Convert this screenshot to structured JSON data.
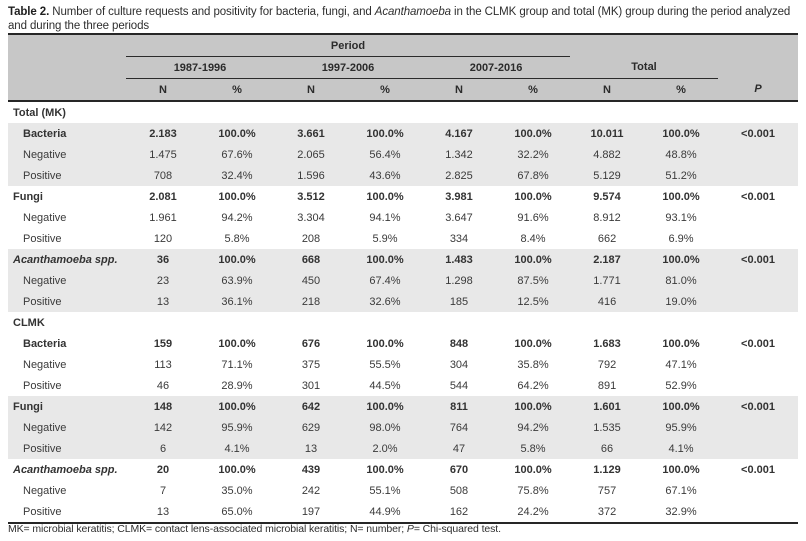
{
  "title": {
    "label": "Table 2.",
    "segment1": " Number of culture requests and positivity for bacteria, fungi, and ",
    "italic_term": "Acanthamoeba",
    "segment2": " in the CLMK group and total (MK) group during the period analyzed and during the three periods"
  },
  "header": {
    "period_label": "Period",
    "periods": [
      "1987-1996",
      "1997-2006",
      "2007-2016"
    ],
    "total_label": "Total",
    "n_label": "N",
    "percent_label": "%",
    "p_label": "P"
  },
  "rows": [
    {
      "label": "Total (MK)",
      "indent": false,
      "bold": true,
      "italic": false,
      "shaded": false,
      "values": [
        "",
        "",
        "",
        "",
        "",
        "",
        "",
        ""
      ],
      "p": ""
    },
    {
      "label": "Bacteria",
      "indent": true,
      "bold": true,
      "italic": false,
      "shaded": true,
      "values": [
        "2.183",
        "100.0%",
        "3.661",
        "100.0%",
        "4.167",
        "100.0%",
        "10.011",
        "100.0%"
      ],
      "p": "<0.001"
    },
    {
      "label": "Negative",
      "indent": true,
      "bold": false,
      "italic": false,
      "shaded": true,
      "values": [
        "1.475",
        "67.6%",
        "2.065",
        "56.4%",
        "1.342",
        "32.2%",
        "4.882",
        "48.8%"
      ],
      "p": ""
    },
    {
      "label": "Positive",
      "indent": true,
      "bold": false,
      "italic": false,
      "shaded": true,
      "values": [
        "708",
        "32.4%",
        "1.596",
        "43.6%",
        "2.825",
        "67.8%",
        "5.129",
        "51.2%"
      ],
      "p": ""
    },
    {
      "label": "Fungi",
      "indent": false,
      "bold": true,
      "italic": false,
      "shaded": false,
      "values": [
        "2.081",
        "100.0%",
        "3.512",
        "100.0%",
        "3.981",
        "100.0%",
        "9.574",
        "100.0%"
      ],
      "p": "<0.001"
    },
    {
      "label": "Negative",
      "indent": true,
      "bold": false,
      "italic": false,
      "shaded": false,
      "values": [
        "1.961",
        "94.2%",
        "3.304",
        "94.1%",
        "3.647",
        "91.6%",
        "8.912",
        "93.1%"
      ],
      "p": ""
    },
    {
      "label": "Positive",
      "indent": true,
      "bold": false,
      "italic": false,
      "shaded": false,
      "values": [
        "120",
        "5.8%",
        "208",
        "5.9%",
        "334",
        "8.4%",
        "662",
        "6.9%"
      ],
      "p": ""
    },
    {
      "label": "Acanthamoeba spp.",
      "indent": false,
      "bold": true,
      "italic": true,
      "shaded": true,
      "values": [
        "36",
        "100.0%",
        "668",
        "100.0%",
        "1.483",
        "100.0%",
        "2.187",
        "100.0%"
      ],
      "p": "<0.001"
    },
    {
      "label": "Negative",
      "indent": true,
      "bold": false,
      "italic": false,
      "shaded": true,
      "values": [
        "23",
        "63.9%",
        "450",
        "67.4%",
        "1.298",
        "87.5%",
        "1.771",
        "81.0%"
      ],
      "p": ""
    },
    {
      "label": "Positive",
      "indent": true,
      "bold": false,
      "italic": false,
      "shaded": true,
      "values": [
        "13",
        "36.1%",
        "218",
        "32.6%",
        "185",
        "12.5%",
        "416",
        "19.0%"
      ],
      "p": ""
    },
    {
      "label": "CLMK",
      "indent": false,
      "bold": true,
      "italic": false,
      "shaded": false,
      "values": [
        "",
        "",
        "",
        "",
        "",
        "",
        "",
        ""
      ],
      "p": ""
    },
    {
      "label": "Bacteria",
      "indent": true,
      "bold": true,
      "italic": false,
      "shaded": false,
      "values": [
        "159",
        "100.0%",
        "676",
        "100.0%",
        "848",
        "100.0%",
        "1.683",
        "100.0%"
      ],
      "p": "<0.001"
    },
    {
      "label": "Negative",
      "indent": true,
      "bold": false,
      "italic": false,
      "shaded": false,
      "values": [
        "113",
        "71.1%",
        "375",
        "55.5%",
        "304",
        "35.8%",
        "792",
        "47.1%"
      ],
      "p": ""
    },
    {
      "label": "Positive",
      "indent": true,
      "bold": false,
      "italic": false,
      "shaded": false,
      "values": [
        "46",
        "28.9%",
        "301",
        "44.5%",
        "544",
        "64.2%",
        "891",
        "52.9%"
      ],
      "p": ""
    },
    {
      "label": "Fungi",
      "indent": false,
      "bold": true,
      "italic": false,
      "shaded": true,
      "values": [
        "148",
        "100.0%",
        "642",
        "100.0%",
        "811",
        "100.0%",
        "1.601",
        "100.0%"
      ],
      "p": "<0.001"
    },
    {
      "label": "Negative",
      "indent": true,
      "bold": false,
      "italic": false,
      "shaded": true,
      "values": [
        "142",
        "95.9%",
        "629",
        "98.0%",
        "764",
        "94.2%",
        "1.535",
        "95.9%"
      ],
      "p": ""
    },
    {
      "label": "Positive",
      "indent": true,
      "bold": false,
      "italic": false,
      "shaded": true,
      "values": [
        "6",
        "4.1%",
        "13",
        "2.0%",
        "47",
        "5.8%",
        "66",
        "4.1%"
      ],
      "p": ""
    },
    {
      "label": "Acanthamoeba spp.",
      "indent": false,
      "bold": true,
      "italic": true,
      "shaded": false,
      "values": [
        "20",
        "100.0%",
        "439",
        "100.0%",
        "670",
        "100.0%",
        "1.129",
        "100.0%"
      ],
      "p": "<0.001"
    },
    {
      "label": "Negative",
      "indent": true,
      "bold": false,
      "italic": false,
      "shaded": false,
      "values": [
        "7",
        "35.0%",
        "242",
        "55.1%",
        "508",
        "75.8%",
        "757",
        "67.1%"
      ],
      "p": ""
    },
    {
      "label": "Positive",
      "indent": true,
      "bold": false,
      "italic": false,
      "shaded": false,
      "values": [
        "13",
        "65.0%",
        "197",
        "44.9%",
        "162",
        "24.2%",
        "372",
        "32.9%"
      ],
      "p": ""
    }
  ],
  "footnote": {
    "segment1": "MK= microbial keratitis; CLMK= contact lens-associated microbial keratitis; N= number; ",
    "italic_term": "P",
    "segment2": "= Chi-squared test."
  },
  "colors": {
    "header_band": "#c7c7c7",
    "row_shade": "#e8e8e8",
    "rule_dark": "#262626",
    "text": "#3a3a3a"
  }
}
